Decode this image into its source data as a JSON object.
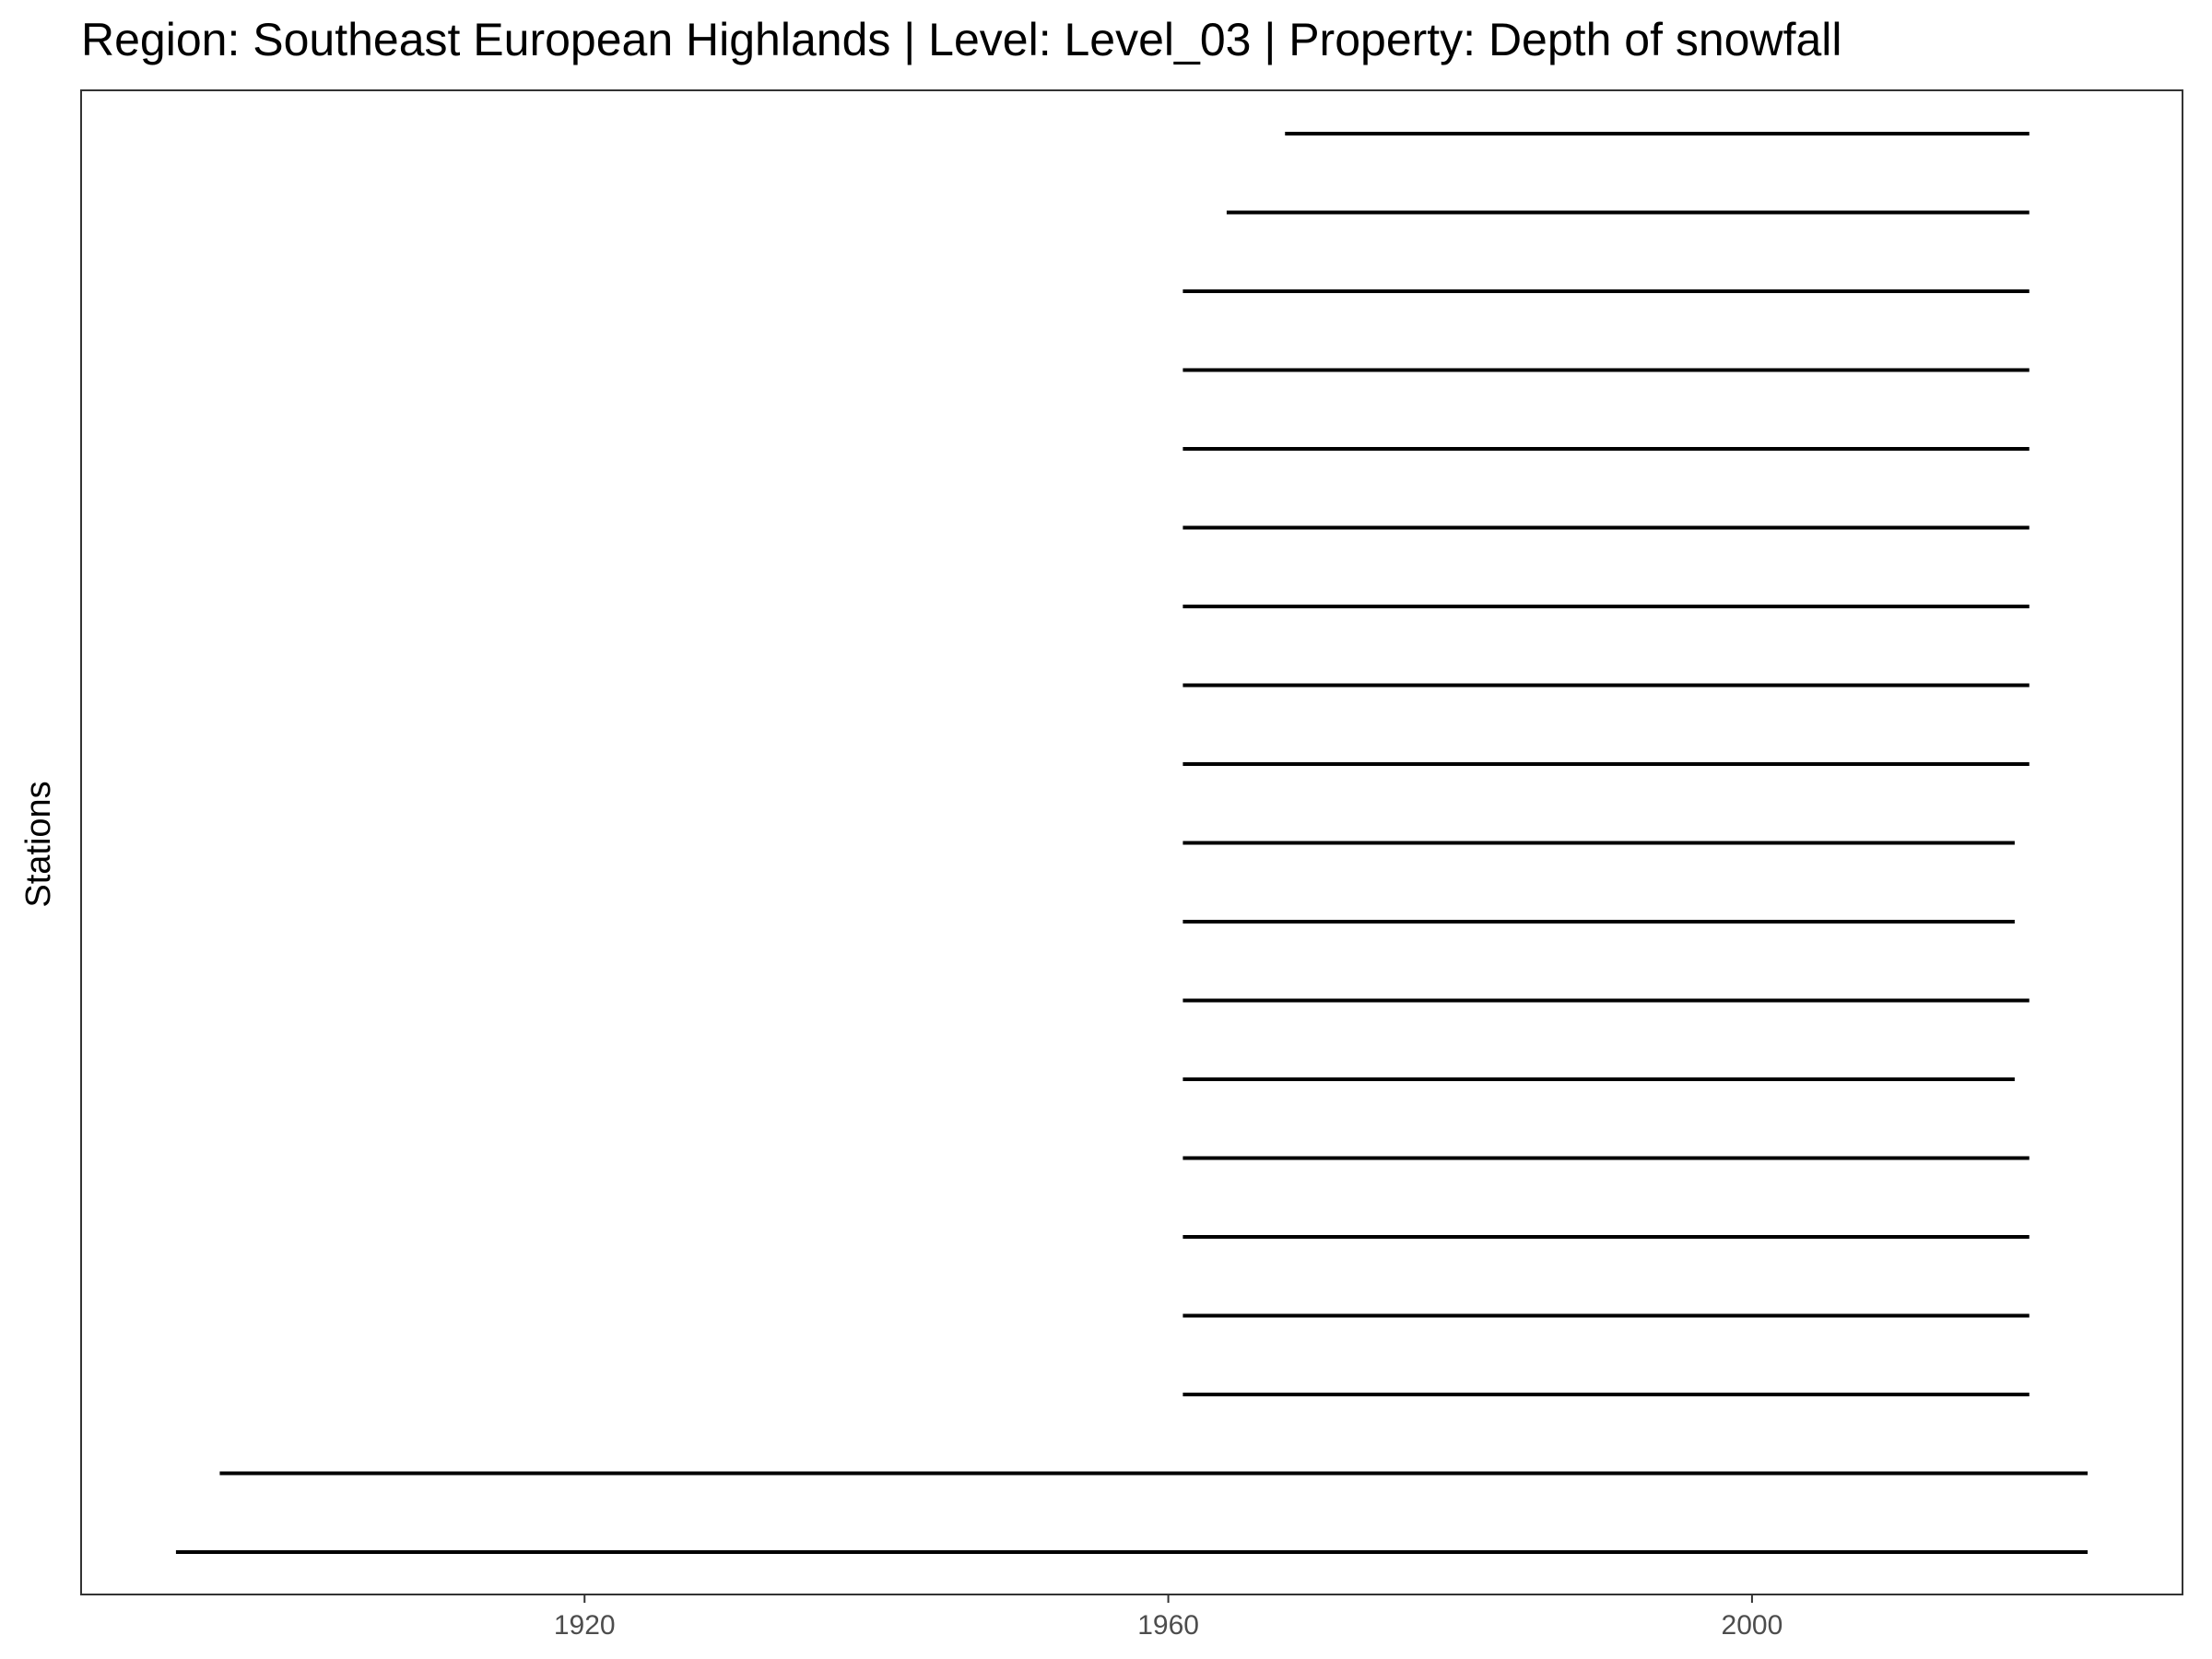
{
  "chart_data": {
    "type": "line",
    "title": "Region: Southeast European Highlands | Level: Level_03 | Property: Depth of snowfall",
    "xlabel": "",
    "ylabel": "Stations",
    "xlim": [
      1885.5,
      2029.5
    ],
    "x_ticks": [
      1920,
      1960,
      2000
    ],
    "x_tick_labels": [
      "1920",
      "1960",
      "2000"
    ],
    "grid": false,
    "legend": "none",
    "line_color": "#000000",
    "segments": [
      {
        "start": 1892,
        "end": 2023
      },
      {
        "start": 1895,
        "end": 2023
      },
      {
        "start": 1961,
        "end": 2019
      },
      {
        "start": 1961,
        "end": 2019
      },
      {
        "start": 1961,
        "end": 2019
      },
      {
        "start": 1961,
        "end": 2019
      },
      {
        "start": 1961,
        "end": 2018
      },
      {
        "start": 1961,
        "end": 2019
      },
      {
        "start": 1961,
        "end": 2018
      },
      {
        "start": 1961,
        "end": 2018
      },
      {
        "start": 1961,
        "end": 2019
      },
      {
        "start": 1961,
        "end": 2019
      },
      {
        "start": 1961,
        "end": 2019
      },
      {
        "start": 1961,
        "end": 2019
      },
      {
        "start": 1961,
        "end": 2019
      },
      {
        "start": 1961,
        "end": 2019
      },
      {
        "start": 1961,
        "end": 2019
      },
      {
        "start": 1964,
        "end": 2019
      },
      {
        "start": 1968,
        "end": 2019
      }
    ]
  }
}
